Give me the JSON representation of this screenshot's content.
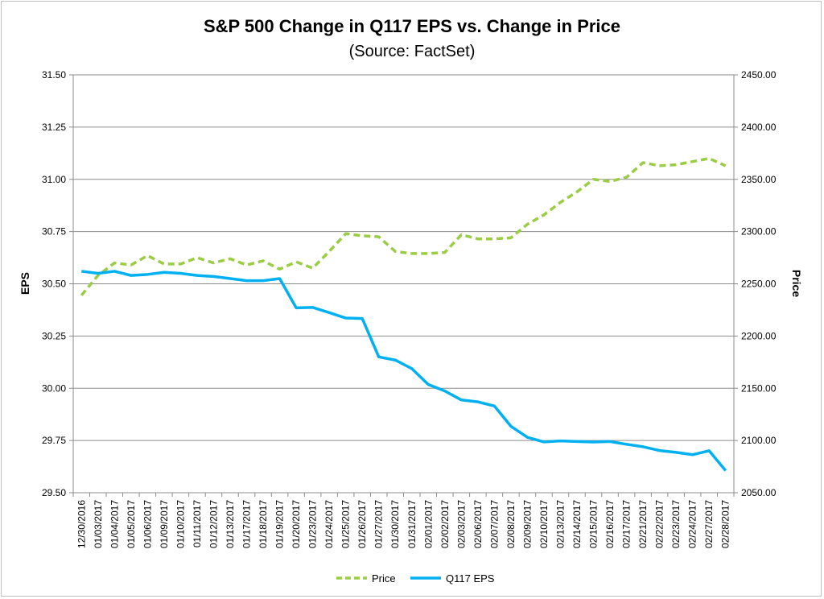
{
  "chart_data": {
    "type": "line",
    "title": "S&P 500 Change in Q117 EPS vs. Change in Price",
    "subtitle": "(Source: FactSet)",
    "ylabel_left": "EPS",
    "ylabel_right": "Price",
    "ylim_left": [
      29.5,
      31.5
    ],
    "ylim_right": [
      2050,
      2450
    ],
    "yticks_left": [
      "31.50",
      "31.25",
      "31.00",
      "30.75",
      "30.50",
      "30.25",
      "30.00",
      "29.75",
      "29.50"
    ],
    "yticks_right": [
      "2450.00",
      "2400.00",
      "2350.00",
      "2300.00",
      "2250.00",
      "2200.00",
      "2150.00",
      "2100.00",
      "2050.00"
    ],
    "grid": true,
    "legend_position": "bottom",
    "categories": [
      "12/30/2016",
      "01/03/2017",
      "01/04/2017",
      "01/05/2017",
      "01/06/2017",
      "01/09/2017",
      "01/10/2017",
      "01/11/2017",
      "01/12/2017",
      "01/13/2017",
      "01/17/2017",
      "01/18/2017",
      "01/19/2017",
      "01/20/2017",
      "01/23/2017",
      "01/24/2017",
      "01/25/2017",
      "01/26/2017",
      "01/27/2017",
      "01/30/2017",
      "01/31/2017",
      "02/01/2017",
      "02/02/2017",
      "02/03/2017",
      "02/06/2017",
      "02/07/2017",
      "02/08/2017",
      "02/09/2017",
      "02/10/2017",
      "02/13/2017",
      "02/14/2017",
      "02/15/2017",
      "02/16/2017",
      "02/17/2017",
      "02/21/2017",
      "02/22/2017",
      "02/23/2017",
      "02/24/2017",
      "02/27/2017",
      "02/28/2017"
    ],
    "series": [
      {
        "name": "Price",
        "axis": "right",
        "color": "#9acd44",
        "dash": true,
        "values": [
          2239,
          2258,
          2270,
          2268,
          2277,
          2269,
          2269,
          2275,
          2270,
          2274,
          2268,
          2272,
          2264,
          2271,
          2265,
          2281,
          2298,
          2296,
          2295,
          2281,
          2279,
          2279,
          2280,
          2297,
          2293,
          2293,
          2294,
          2307,
          2316,
          2328,
          2338,
          2350,
          2348,
          2352,
          2366,
          2363,
          2364,
          2367,
          2370,
          2363
        ]
      },
      {
        "name": "Q117 EPS",
        "axis": "left",
        "color": "#00b0f0",
        "dash": false,
        "values": [
          30.56,
          30.55,
          30.56,
          30.54,
          30.545,
          30.555,
          30.55,
          30.54,
          30.535,
          30.525,
          30.515,
          30.515,
          30.525,
          30.385,
          30.387,
          30.362,
          30.336,
          30.334,
          30.15,
          30.135,
          30.094,
          30.018,
          29.987,
          29.944,
          29.935,
          29.915,
          29.818,
          29.765,
          29.743,
          29.748,
          29.745,
          29.743,
          29.745,
          29.732,
          29.72,
          29.702,
          29.693,
          29.682,
          29.701,
          29.606
        ]
      }
    ]
  }
}
